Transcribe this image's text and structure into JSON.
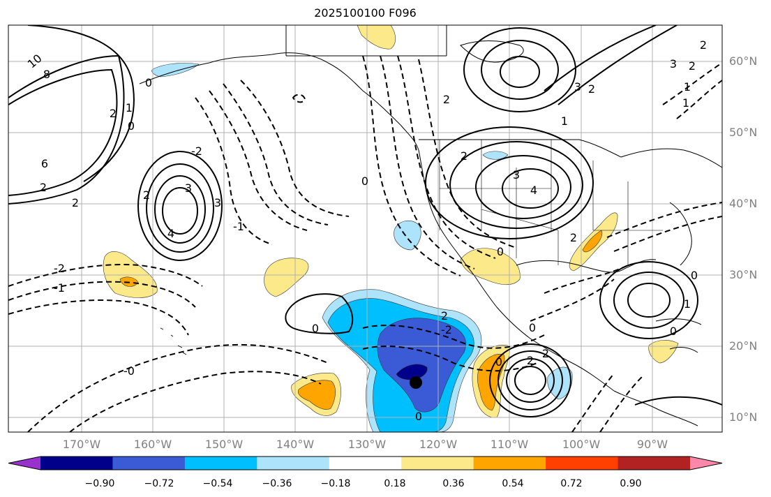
{
  "title": "2025100100 F096",
  "map": {
    "lat_labels": [
      "60°N",
      "50°N",
      "40°N",
      "30°N",
      "20°N",
      "10°N"
    ],
    "lon_labels": [
      "170°W",
      "160°W",
      "150°W",
      "140°W",
      "130°W",
      "120°W",
      "110°W",
      "100°W",
      "90°W"
    ],
    "contour_labels": [
      "10",
      "8",
      "6",
      "2",
      "2",
      "1",
      "0",
      "3",
      "3",
      "4",
      "2",
      "2",
      "0",
      "2",
      "3",
      "4",
      "-2",
      "-1",
      "-2",
      "-1",
      "-0",
      "0",
      "0",
      "2",
      "0",
      "2",
      "2",
      "0",
      "1",
      "0",
      "0",
      "2",
      "3",
      "1",
      "3",
      "2",
      "2",
      "-2",
      "1",
      "0",
      "0",
      "2",
      "1",
      "2"
    ]
  },
  "colorbar": {
    "colors": [
      "#9932CC",
      "#00008B",
      "#3B5BD6",
      "#00BFFF",
      "#ADE3FB",
      "#FFFFFF",
      "#FCE98A",
      "#FFA500",
      "#FF4000",
      "#B22222",
      "#FF88AA"
    ],
    "tick_labels": [
      "−0.90",
      "−0.72",
      "−0.54",
      "−0.36",
      "−0.18",
      "0.18",
      "0.36",
      "0.54",
      "0.72",
      "0.90"
    ]
  }
}
